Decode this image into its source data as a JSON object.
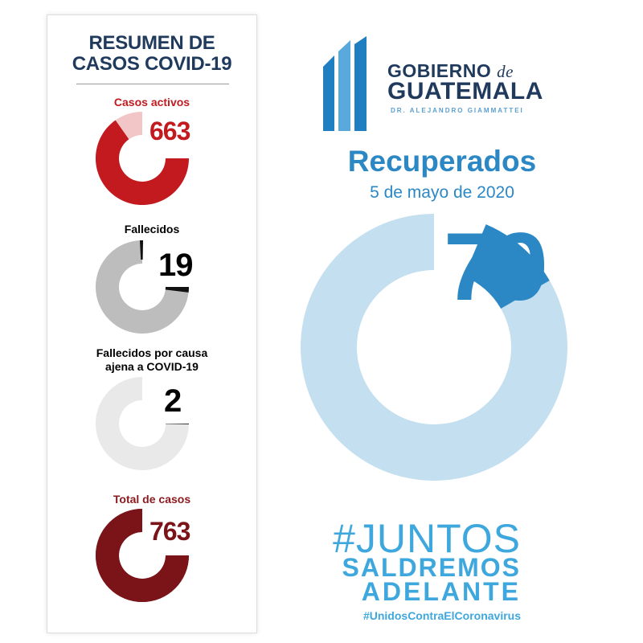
{
  "summary": {
    "title_line1": "RESUMEN DE",
    "title_line2": "CASOS COVID-19",
    "stats": [
      {
        "label": "Casos activos",
        "value": "663",
        "fraction": 0.87,
        "color": "#c21a1f",
        "track": "#f2c6c7",
        "label_color": "#c21a1f",
        "number_color": "#c21a1f"
      },
      {
        "label": "Fallecidos",
        "value": "19",
        "fraction": 0.025,
        "color": "#111111",
        "track": "#bdbdbd",
        "label_color": "#000000",
        "number_color": "#000000"
      },
      {
        "label_line1": "Fallecidos por causa",
        "label_line2": "ajena a COVID-19",
        "value": "2",
        "fraction": 0.003,
        "color": "#111111",
        "track": "#e9e9e9",
        "label_color": "#000000",
        "number_color": "#000000"
      },
      {
        "label": "Total de casos",
        "value": "763",
        "fraction": 1.0,
        "color": "#7b1418",
        "track": "#7b1418",
        "label_color": "#8b1a1e",
        "number_color": "#7b1418"
      }
    ]
  },
  "logo": {
    "line1": "GOBIERNO",
    "line1_suffix": "de",
    "line2": "GUATEMALA",
    "line3": "DR. ALEJANDRO GIAMMATTEI",
    "colors": {
      "bar_dark": "#1f7fc1",
      "bar_light": "#5aa9dc"
    }
  },
  "recuperados": {
    "title": "Recuperados",
    "date": "5 de mayo de 2020",
    "value": "79",
    "fraction": 0.103,
    "color": "#2b88c5",
    "track": "#c3dff0"
  },
  "slogan": {
    "line1": "#JUNTOS",
    "line2": "SALDREMOS",
    "line3": "ADELANTE",
    "hashtag": "#UnidosContraElCoronavirus",
    "color": "#3ea7dd"
  }
}
